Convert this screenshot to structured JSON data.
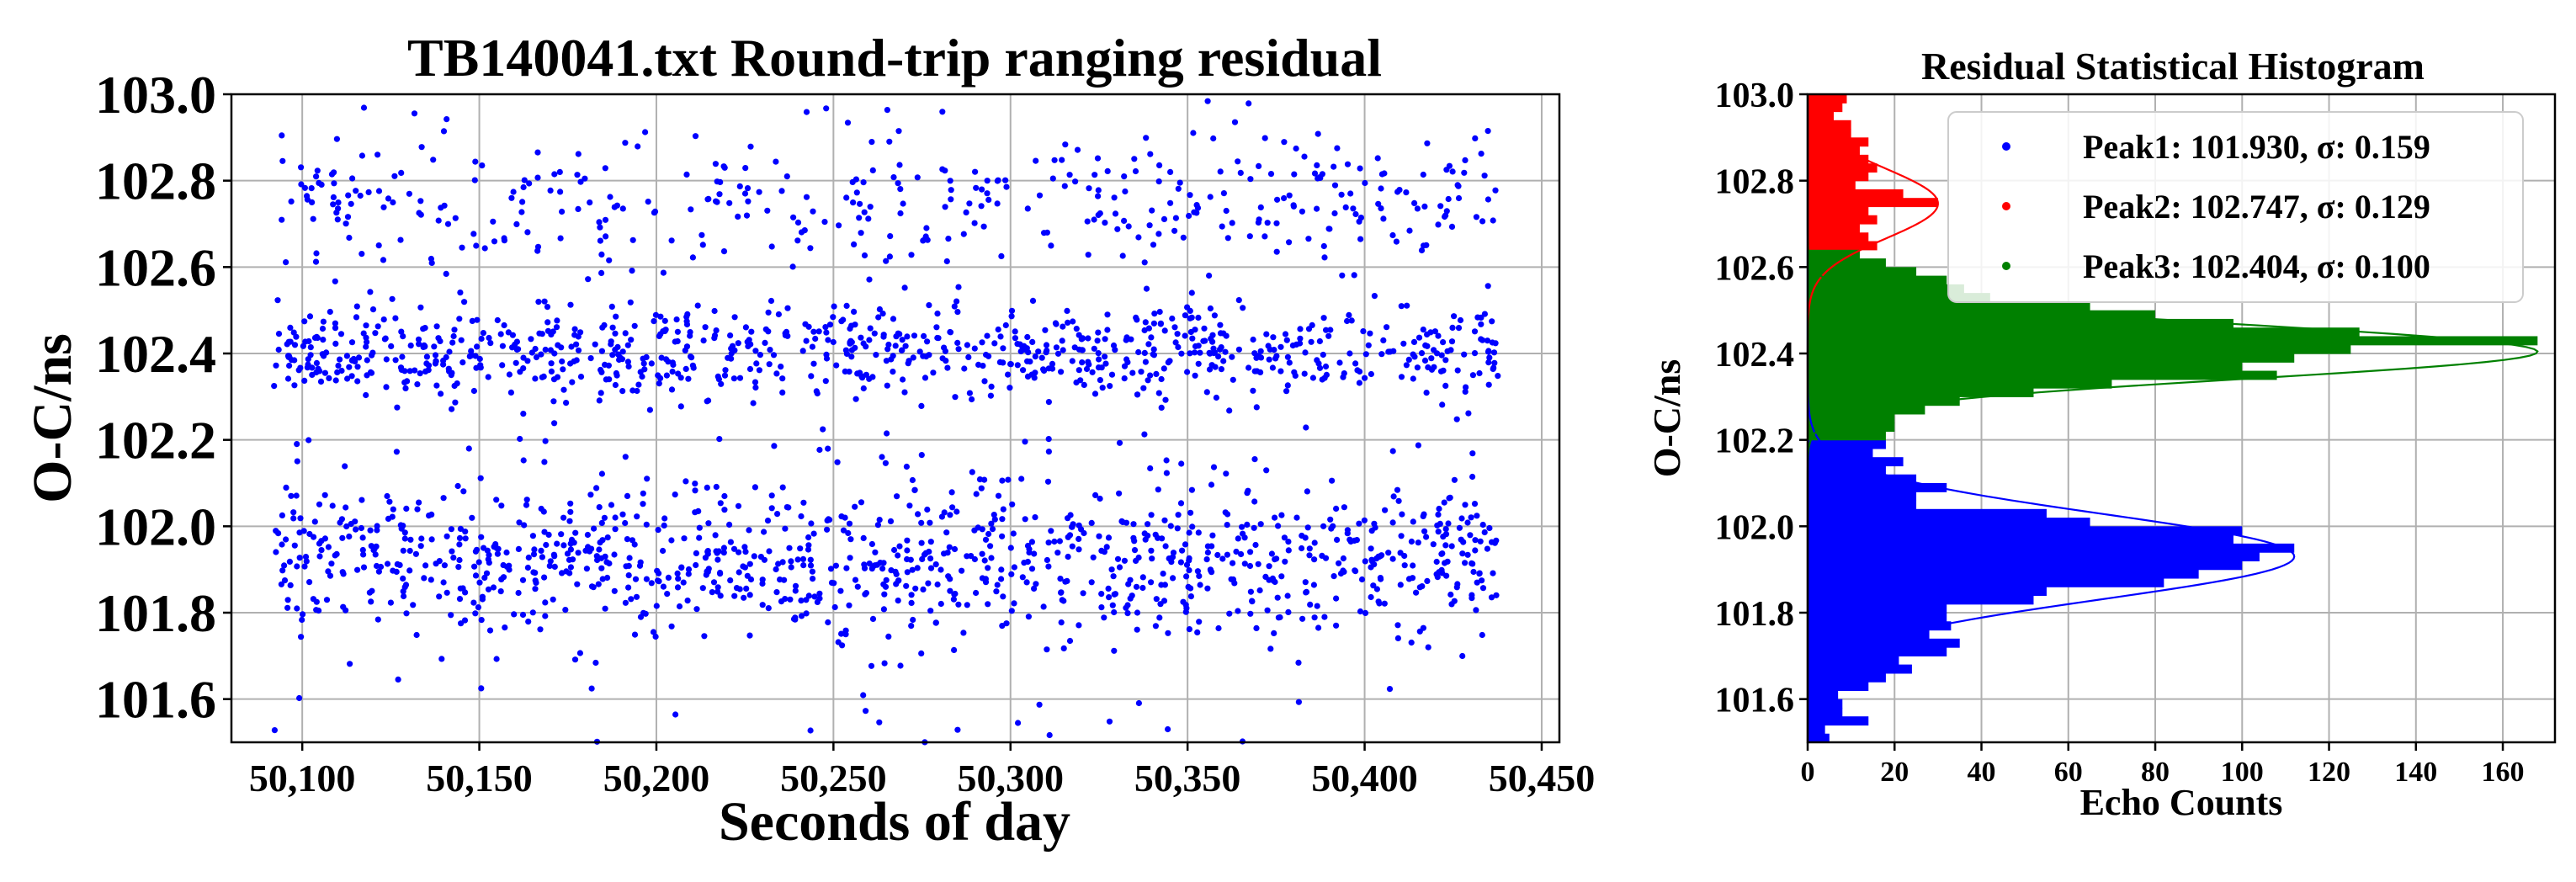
{
  "chart_data": [
    {
      "type": "scatter",
      "title": "TB140041.txt Round-trip ranging residual",
      "xlabel": "Seconds of day",
      "ylabel": "O-C/ns",
      "xlim": [
        50080,
        50455
      ],
      "ylim": [
        101.5,
        103.0
      ],
      "xticks": [
        50100,
        50150,
        50200,
        50250,
        50300,
        50350,
        50400,
        50450
      ],
      "xtick_labels": [
        "50,100",
        "50,150",
        "50,200",
        "50,250",
        "50,300",
        "50,350",
        "50,400",
        "50,450"
      ],
      "yticks": [
        101.6,
        101.8,
        102.0,
        102.2,
        102.4,
        102.6,
        102.8,
        103.0
      ],
      "ytick_labels": [
        "101.6",
        "101.8",
        "102.0",
        "102.2",
        "102.4",
        "102.6",
        "102.8",
        "103.0"
      ],
      "grid": true,
      "point_color": "#0000ff",
      "x_range_of_points": [
        50092,
        50438
      ],
      "approx_point_count": 2400,
      "clusters": [
        {
          "center": 101.93,
          "sigma": 0.159
        },
        {
          "center": 102.404,
          "sigma": 0.1
        },
        {
          "center": 102.747,
          "sigma": 0.129
        }
      ]
    },
    {
      "type": "histogram",
      "orientation": "horizontal",
      "title": "Residual Statistical Histogram",
      "xlabel": "Echo Counts",
      "ylabel": "O-C/ns",
      "xlim": [
        0,
        172
      ],
      "ylim": [
        101.5,
        103.0
      ],
      "xticks": [
        0,
        20,
        40,
        60,
        80,
        100,
        120,
        140,
        160
      ],
      "xtick_labels": [
        "0",
        "20",
        "40",
        "60",
        "80",
        "100",
        "120",
        "140",
        "160"
      ],
      "yticks": [
        101.6,
        101.8,
        102.0,
        102.2,
        102.4,
        102.6,
        102.8,
        103.0
      ],
      "ytick_labels": [
        "101.6",
        "101.8",
        "102.0",
        "102.2",
        "102.4",
        "102.6",
        "102.8",
        "103.0"
      ],
      "grid": true,
      "legend_position": "top-right",
      "series": [
        {
          "name": "Peak1: 101.930, σ: 0.159",
          "color": "#0000ff",
          "bins": [
            [
              101.5,
              5
            ],
            [
              101.52,
              4
            ],
            [
              101.54,
              14
            ],
            [
              101.56,
              8
            ],
            [
              101.58,
              8
            ],
            [
              101.6,
              7
            ],
            [
              101.62,
              14
            ],
            [
              101.64,
              18
            ],
            [
              101.66,
              24
            ],
            [
              101.68,
              21
            ],
            [
              101.7,
              32
            ],
            [
              101.72,
              35
            ],
            [
              101.74,
              28
            ],
            [
              101.76,
              33
            ],
            [
              101.78,
              32
            ],
            [
              101.8,
              32
            ],
            [
              101.82,
              52
            ],
            [
              101.84,
              55
            ],
            [
              101.86,
              82
            ],
            [
              101.88,
              90
            ],
            [
              101.9,
              100
            ],
            [
              101.92,
              104
            ],
            [
              101.94,
              112
            ],
            [
              101.96,
              98
            ],
            [
              101.98,
              100
            ],
            [
              102.0,
              65
            ],
            [
              102.02,
              55
            ],
            [
              102.04,
              25
            ],
            [
              102.06,
              25
            ],
            [
              102.08,
              32
            ],
            [
              102.1,
              25
            ],
            [
              102.12,
              18
            ],
            [
              102.14,
              22
            ],
            [
              102.16,
              15
            ],
            [
              102.18,
              18
            ]
          ],
          "fit": {
            "mu": 101.93,
            "sigma": 0.159,
            "peak_count": 112
          }
        },
        {
          "name": "Peak2: 102.747, σ: 0.129",
          "color": "#ff0000",
          "bins": [
            [
              102.64,
              16
            ],
            [
              102.66,
              14
            ],
            [
              102.68,
              12
            ],
            [
              102.7,
              16
            ],
            [
              102.72,
              14
            ],
            [
              102.74,
              30
            ],
            [
              102.76,
              22
            ],
            [
              102.78,
              11
            ],
            [
              102.8,
              14
            ],
            [
              102.82,
              16
            ],
            [
              102.84,
              14
            ],
            [
              102.86,
              12
            ],
            [
              102.88,
              14
            ],
            [
              102.9,
              10
            ],
            [
              102.92,
              10
            ],
            [
              102.94,
              6
            ],
            [
              102.96,
              8
            ],
            [
              102.98,
              9
            ]
          ],
          "fit": {
            "mu": 102.747,
            "sigma": 0.129,
            "peak_count": 30
          }
        },
        {
          "name": "Peak3: 102.404, σ: 0.100",
          "color": "#008000",
          "bins": [
            [
              102.2,
              18
            ],
            [
              102.22,
              20
            ],
            [
              102.24,
              20
            ],
            [
              102.26,
              27
            ],
            [
              102.28,
              35
            ],
            [
              102.3,
              52
            ],
            [
              102.32,
              70
            ],
            [
              102.34,
              108
            ],
            [
              102.36,
              100
            ],
            [
              102.38,
              112
            ],
            [
              102.4,
              125
            ],
            [
              102.42,
              168
            ],
            [
              102.44,
              127
            ],
            [
              102.46,
              98
            ],
            [
              102.48,
              80
            ],
            [
              102.5,
              65
            ],
            [
              102.52,
              42
            ],
            [
              102.54,
              36
            ],
            [
              102.56,
              32
            ],
            [
              102.58,
              25
            ],
            [
              102.6,
              18
            ],
            [
              102.62,
              12
            ]
          ],
          "fit": {
            "mu": 102.404,
            "sigma": 0.1,
            "peak_count": 168
          }
        }
      ]
    }
  ]
}
